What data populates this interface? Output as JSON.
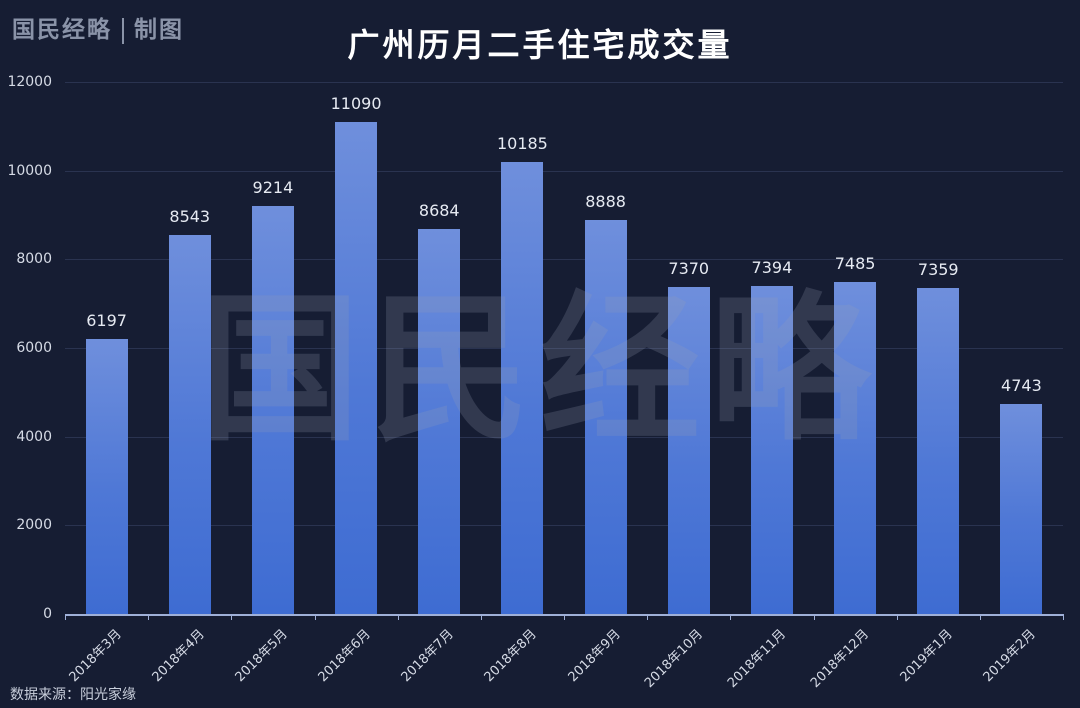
{
  "header": {
    "brand": "国民经略",
    "brand_suffix": "制图",
    "title": "广州历月二手住宅成交量"
  },
  "watermark": "国民经略",
  "source": "数据来源：阳光家缘",
  "colors": {
    "background": "#161d33",
    "bar_top": "#6f8fdc",
    "bar_bottom": "#3e6cd2",
    "gridline": "#2a3350",
    "text": "#d6dbe6"
  },
  "chart_data": {
    "type": "bar",
    "title": "广州历月二手住宅成交量",
    "xlabel": "",
    "ylabel": "",
    "categories": [
      "2018年3月",
      "2018年4月",
      "2018年5月",
      "2018年6月",
      "2018年7月",
      "2018年8月",
      "2018年9月",
      "2018年10月",
      "2018年11月",
      "2018年12月",
      "2019年1月",
      "2019年2月"
    ],
    "values": [
      6197,
      8543,
      9214,
      11090,
      8684,
      10185,
      8888,
      7370,
      7394,
      7485,
      7359,
      4743
    ],
    "ylim": [
      0,
      12000
    ],
    "yticks": [
      0,
      2000,
      4000,
      6000,
      8000,
      10000,
      12000
    ],
    "grid": true,
    "legend": "none",
    "data_labels": true
  }
}
